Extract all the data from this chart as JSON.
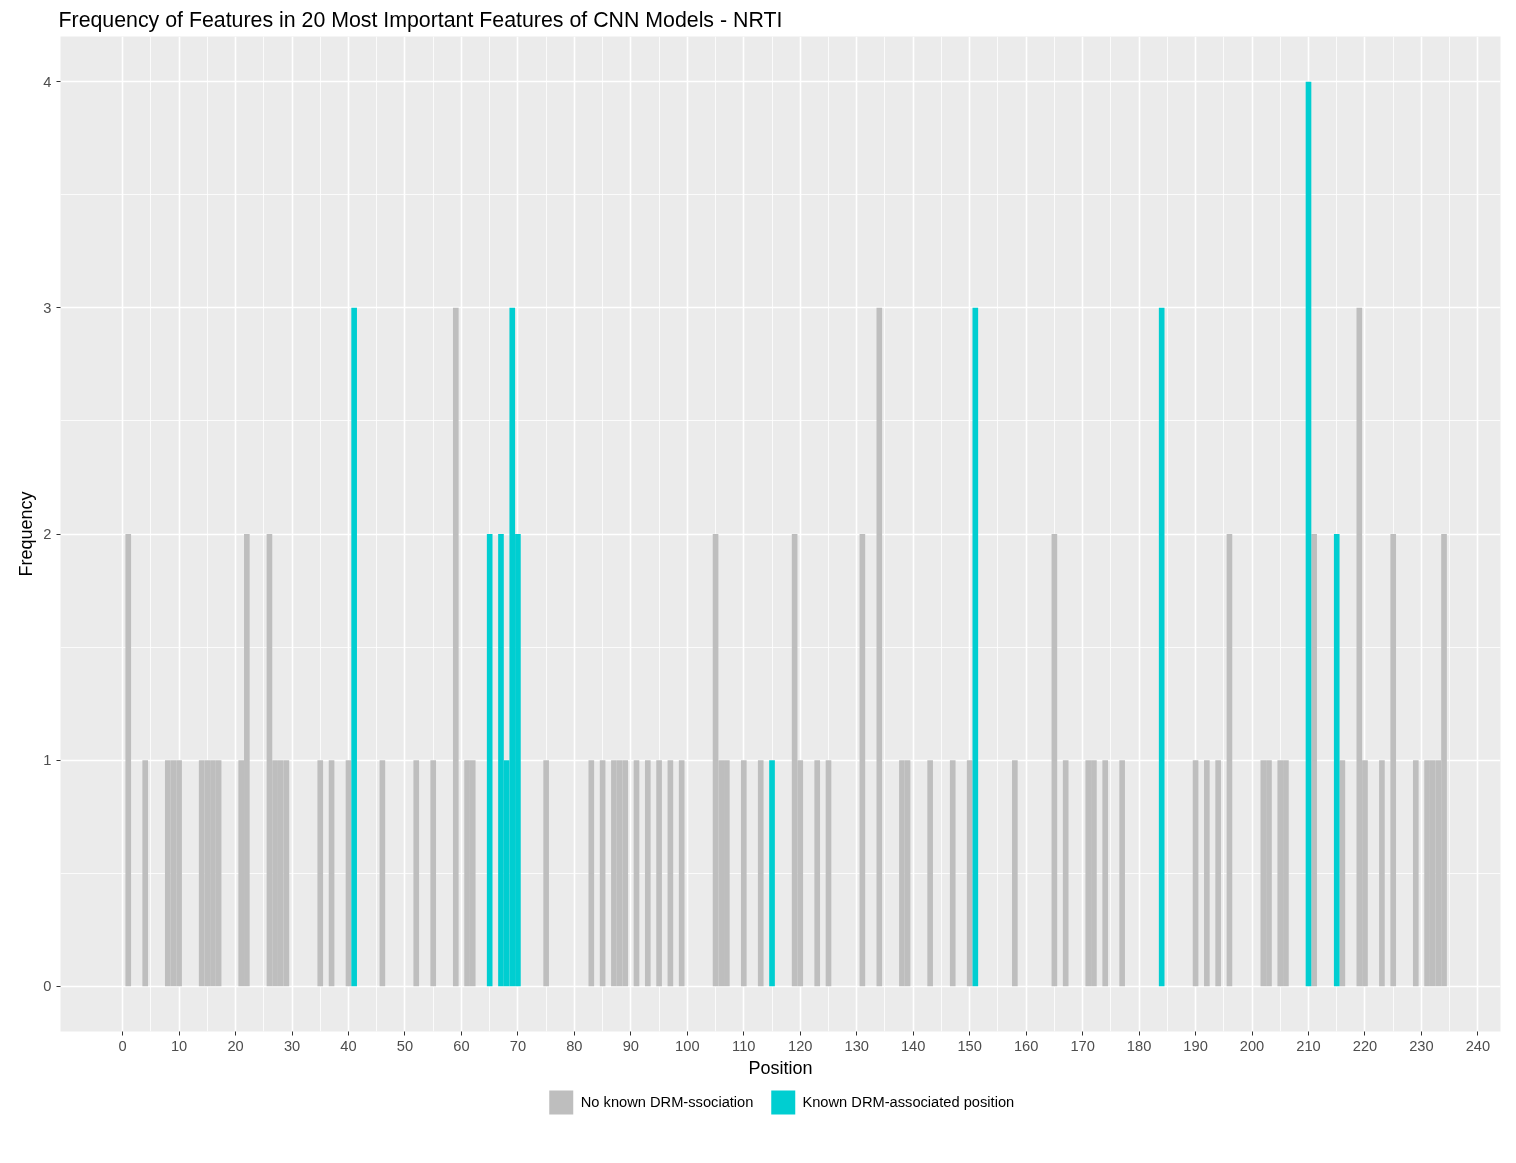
{
  "chart_data": {
    "type": "bar",
    "title": "Frequency of Features in 20 Most Important Features of CNN Models - NRTI",
    "xlabel": "Position",
    "ylabel": "Frequency",
    "series": [
      {
        "name": "No known DRM-ssociation",
        "color": "#bebebe",
        "x": [
          1,
          4,
          8,
          9,
          10,
          14,
          15,
          16,
          17,
          21,
          22,
          26,
          27,
          28,
          29,
          35,
          37,
          40,
          46,
          52,
          55,
          59,
          61,
          62,
          75,
          83,
          85,
          87,
          88,
          89,
          91,
          93,
          95,
          97,
          99,
          105,
          106,
          107,
          110,
          113,
          119,
          120,
          123,
          125,
          131,
          134,
          138,
          139,
          143,
          147,
          150,
          158,
          165,
          167,
          171,
          172,
          174,
          177,
          190,
          192,
          194,
          196,
          202,
          203,
          205,
          206,
          211,
          216,
          219,
          220,
          223,
          225,
          229,
          231,
          232,
          233,
          234
        ],
        "values": [
          2,
          1,
          1,
          1,
          1,
          1,
          1,
          1,
          1,
          1,
          2,
          2,
          1,
          1,
          1,
          1,
          1,
          1,
          1,
          1,
          1,
          3,
          1,
          1,
          1,
          1,
          1,
          1,
          1,
          1,
          1,
          1,
          1,
          1,
          1,
          2,
          1,
          1,
          1,
          1,
          2,
          1,
          1,
          1,
          2,
          3,
          1,
          1,
          1,
          1,
          1,
          1,
          2,
          1,
          1,
          1,
          1,
          1,
          1,
          1,
          1,
          2,
          1,
          1,
          1,
          1,
          2,
          1,
          3,
          1,
          1,
          2,
          1,
          1,
          1,
          1,
          2
        ]
      },
      {
        "name": "Known DRM-associated position",
        "color": "#00ced1",
        "x": [
          41,
          65,
          67,
          68,
          69,
          70,
          115,
          151,
          184,
          210,
          215
        ],
        "values": [
          3,
          2,
          2,
          1,
          3,
          2,
          1,
          3,
          3,
          4,
          2
        ]
      }
    ],
    "xlim": [
      -11,
      244
    ],
    "xticks": [
      0,
      10,
      20,
      30,
      40,
      50,
      60,
      70,
      80,
      90,
      100,
      110,
      120,
      130,
      140,
      150,
      160,
      170,
      180,
      190,
      200,
      210,
      220,
      230,
      240
    ],
    "ylim": [
      -0.2,
      4.2
    ],
    "yticks": [
      0,
      1,
      2,
      3,
      4
    ],
    "grid": true,
    "legend": "bottom"
  }
}
